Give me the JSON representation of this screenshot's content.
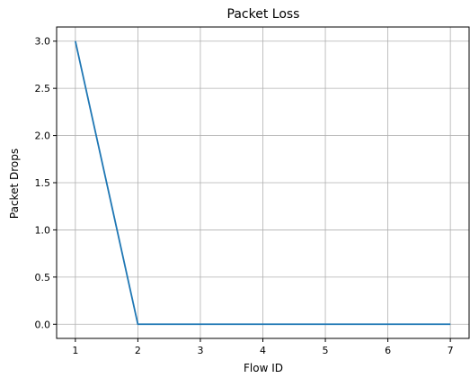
{
  "chart_data": {
    "type": "line",
    "title": "Packet Loss",
    "xlabel": "Flow ID",
    "ylabel": "Packet Drops",
    "x": [
      1,
      2,
      3,
      4,
      5,
      6,
      7
    ],
    "series": [
      {
        "values": [
          3,
          0,
          0,
          0,
          0,
          0,
          0
        ],
        "color": "#1f77b4"
      }
    ],
    "xlim": [
      0.7,
      7.3
    ],
    "ylim": [
      -0.15,
      3.15
    ],
    "xticks": [
      1,
      2,
      3,
      4,
      5,
      6,
      7
    ],
    "xtick_labels": [
      "1",
      "2",
      "3",
      "4",
      "5",
      "6",
      "7"
    ],
    "yticks": [
      0,
      0.5,
      1,
      1.5,
      2,
      2.5,
      3
    ],
    "ytick_labels": [
      "0.0",
      "0.5",
      "1.0",
      "1.5",
      "2.0",
      "2.5",
      "3.0"
    ],
    "grid": true,
    "legend": false
  }
}
